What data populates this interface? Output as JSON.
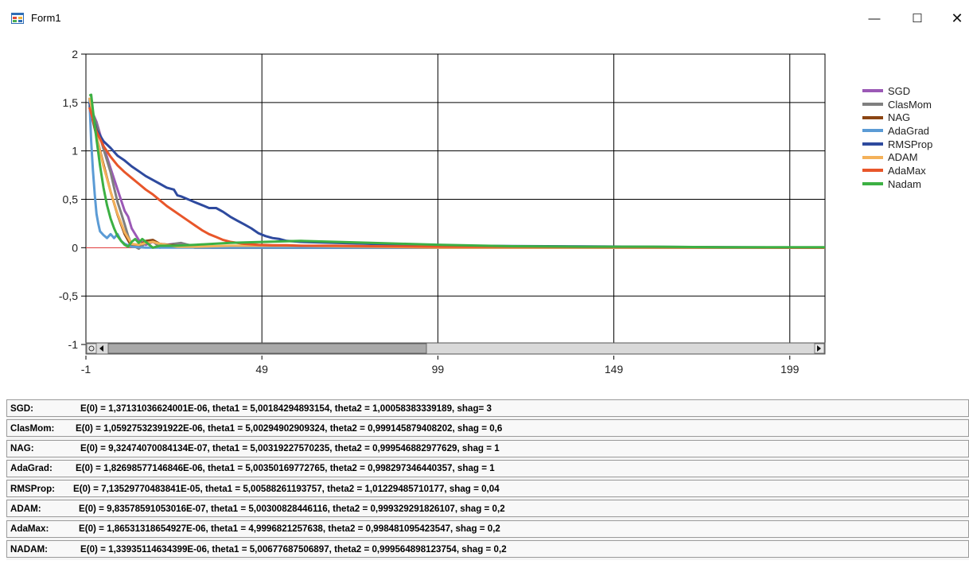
{
  "window": {
    "title": "Form1",
    "minimize_glyph": "—",
    "maximize_glyph": "☐",
    "close_glyph": "✕"
  },
  "chart_data": {
    "type": "line",
    "ylim": [
      -1,
      2
    ],
    "xlim": [
      -1,
      209
    ],
    "y_ticks": [
      2,
      1.5,
      1,
      0.5,
      0,
      -0.5,
      -1
    ],
    "y_tick_labels": [
      "2",
      "1,5",
      "1",
      "0,5",
      "0",
      "-0,5",
      "-1"
    ],
    "x_ticks": [
      -1,
      49,
      99,
      149,
      199
    ],
    "x_tick_labels": [
      "-1",
      "49",
      "99",
      "149",
      "199"
    ],
    "legend_position": "top-right, outside plot",
    "grid": true,
    "series": [
      {
        "name": "SGD",
        "color": "#9b59b6",
        "x": [
          0,
          2,
          4,
          6,
          8,
          10,
          11,
          12,
          14,
          16,
          18,
          20,
          24,
          28,
          35,
          50,
          100,
          209
        ],
        "y": [
          1.47,
          1.3,
          1.05,
          0.82,
          0.6,
          0.38,
          0.32,
          0.2,
          0.08,
          0.03,
          0.06,
          0.02,
          0.04,
          0.03,
          0.0,
          0.0,
          0.0,
          0.0
        ]
      },
      {
        "name": "ClasMom",
        "color": "#7f7f7f",
        "x": [
          0,
          2,
          4,
          6,
          7,
          8,
          9,
          10,
          11,
          12,
          14,
          16,
          18,
          20,
          24,
          26,
          28,
          30,
          35,
          50,
          100,
          209
        ],
        "y": [
          1.47,
          1.28,
          1.02,
          0.78,
          0.62,
          0.47,
          0.36,
          0.24,
          0.12,
          0.03,
          -0.01,
          0.05,
          0.07,
          0.0,
          0.04,
          0.05,
          0.03,
          0.0,
          0.0,
          0.0,
          0.0,
          0.0
        ]
      },
      {
        "name": "NAG",
        "color": "#8b4513",
        "x": [
          0,
          2,
          4,
          6,
          8,
          10,
          12,
          14,
          16,
          18,
          20,
          25,
          30,
          50,
          100,
          209
        ],
        "y": [
          1.47,
          1.15,
          0.86,
          0.58,
          0.34,
          0.14,
          0.01,
          0.02,
          0.07,
          0.08,
          0.04,
          0.02,
          0.0,
          0.0,
          0.0,
          0.0
        ]
      },
      {
        "name": "AdaGrad",
        "color": "#5b9bd5",
        "x": [
          0,
          0.5,
          1,
          1.5,
          2,
          2.5,
          3,
          4,
          5,
          6,
          7,
          8,
          9,
          10,
          12,
          16,
          20,
          30,
          60,
          100,
          209
        ],
        "y": [
          1.55,
          1.1,
          0.8,
          0.55,
          0.35,
          0.25,
          0.17,
          0.13,
          0.1,
          0.14,
          0.1,
          0.14,
          0.07,
          0.04,
          0.01,
          0.0,
          0.0,
          0.0,
          0.0,
          0.0,
          0.0
        ]
      },
      {
        "name": "RMSProp",
        "color": "#2e4a9e",
        "x": [
          0,
          2,
          4,
          6,
          8,
          10,
          12,
          14,
          16,
          18,
          20,
          22,
          24,
          25,
          26,
          28,
          30,
          32,
          34,
          36,
          38,
          40,
          42,
          44,
          46,
          48,
          50,
          52,
          54,
          56,
          60,
          70,
          80,
          100,
          209
        ],
        "y": [
          1.5,
          1.22,
          1.1,
          1.03,
          0.95,
          0.9,
          0.84,
          0.79,
          0.74,
          0.7,
          0.66,
          0.62,
          0.6,
          0.54,
          0.53,
          0.5,
          0.47,
          0.44,
          0.41,
          0.41,
          0.37,
          0.32,
          0.28,
          0.24,
          0.2,
          0.15,
          0.12,
          0.1,
          0.09,
          0.07,
          0.06,
          0.05,
          0.04,
          0.02,
          0.0
        ]
      },
      {
        "name": "ADAM",
        "color": "#f4b15a",
        "x": [
          0,
          1,
          2,
          4,
          6,
          8,
          10,
          12,
          14,
          16,
          18,
          20,
          25,
          30,
          40,
          50,
          60,
          100,
          209
        ],
        "y": [
          1.55,
          1.38,
          1.15,
          0.84,
          0.58,
          0.35,
          0.16,
          0.04,
          0.03,
          0.05,
          0.06,
          0.04,
          0.01,
          0.01,
          0.02,
          0.02,
          0.02,
          0.0,
          0.0
        ]
      },
      {
        "name": "AdaMax",
        "color": "#e8562a",
        "x": [
          0,
          2,
          4,
          6,
          8,
          10,
          12,
          14,
          16,
          18,
          20,
          22,
          24,
          26,
          28,
          30,
          32,
          34,
          36,
          38,
          40,
          44,
          48,
          52,
          56,
          60,
          70,
          80,
          100,
          209
        ],
        "y": [
          1.45,
          1.2,
          1.05,
          0.94,
          0.85,
          0.78,
          0.72,
          0.66,
          0.6,
          0.55,
          0.49,
          0.43,
          0.38,
          0.33,
          0.28,
          0.23,
          0.18,
          0.14,
          0.11,
          0.08,
          0.06,
          0.04,
          0.03,
          0.025,
          0.025,
          0.02,
          0.02,
          0.015,
          0.01,
          0.0
        ]
      },
      {
        "name": "Nadam",
        "color": "#3cb043",
        "x": [
          0,
          0.5,
          1,
          2,
          3,
          4,
          5,
          6,
          7,
          8,
          9,
          10,
          11,
          12,
          13,
          14,
          15,
          16,
          17,
          18,
          20,
          24,
          30,
          40,
          50,
          60,
          70,
          80,
          90,
          100,
          120,
          140,
          160,
          180,
          200,
          209
        ],
        "y": [
          1.57,
          1.58,
          1.42,
          1.12,
          0.85,
          0.62,
          0.44,
          0.3,
          0.2,
          0.12,
          0.07,
          0.03,
          0.01,
          0.06,
          0.09,
          0.05,
          0.09,
          0.06,
          0.03,
          0.0,
          0.02,
          0.02,
          0.03,
          0.05,
          0.06,
          0.07,
          0.06,
          0.05,
          0.04,
          0.03,
          0.015,
          0.01,
          0.01,
          0.005,
          0.005,
          0.005
        ]
      }
    ]
  },
  "results": [
    {
      "name": "SGD:",
      "text": "E(0) = 1,37131036624001E-06, theta1 = 5,00184294893154, theta2 = 1,00058383339189, shag= 3",
      "indent": 88
    },
    {
      "name": "ClasMom:",
      "text": "E(0) = 1,05927532391922E-06, theta1 = 5,00294902909324, theta2 = 0,999145879408202, shag = 0,6",
      "indent": 82
    },
    {
      "name": "NAG:",
      "text": "E(0) = 9,32474070084134E-07, theta1 = 5,00319227570235, theta2 = 0,999546882977629, shag = 1",
      "indent": 88
    },
    {
      "name": "AdaGrad:",
      "text": "E(0) = 1,82698577146846E-06, theta1 = 5,00350169772765, theta2 = 0,998297346440357, shag = 1",
      "indent": 82
    },
    {
      "name": "RMSProp:",
      "text": "E(0) = 7,13529770483841E-05, theta1 = 5,00588261193757, theta2 = 1,01229485710177, shag = 0,04",
      "indent": 79
    },
    {
      "name": "ADAM:",
      "text": "E(0) = 9,83578591053016E-07,  theta1 = 5,00300828446116, theta2 = 0,999329291826107, shag = 0,2",
      "indent": 86
    },
    {
      "name": "AdaMax:",
      "text": "E(0) = 1,86531318654927E-06, theta1 = 4,9996821257638, theta2 = 0,998481095423547, shag = 0,2",
      "indent": 86
    },
    {
      "name": "NADAM:",
      "text": "E(0) = 1,33935114634399E-06, theta1 = 5,00677687506897, theta2 = 0,999564898123754, shag = 0,2",
      "indent": 88
    }
  ]
}
